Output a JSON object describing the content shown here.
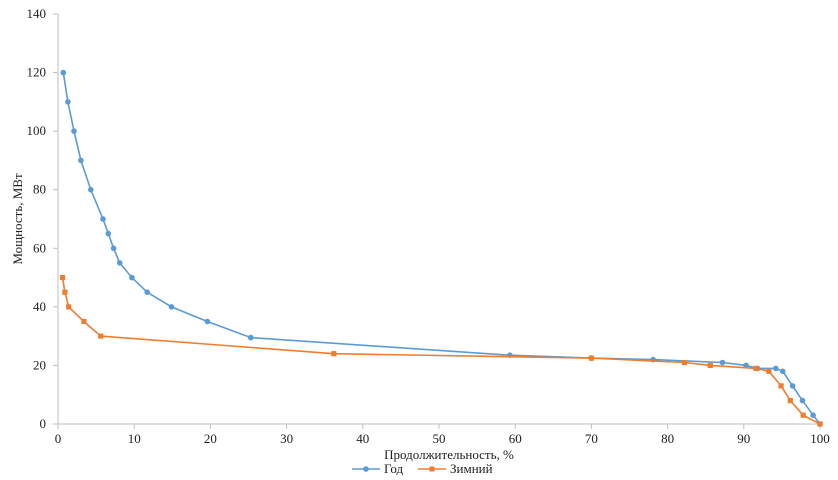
{
  "chart_data": {
    "type": "line",
    "xlabel": "Продолжительность, %",
    "ylabel": "Мощность, МВт",
    "xlim": [
      0,
      100
    ],
    "ylim": [
      0,
      140
    ],
    "xticks": [
      0,
      10,
      20,
      30,
      40,
      50,
      60,
      70,
      80,
      90,
      100
    ],
    "yticks": [
      0,
      20,
      40,
      60,
      80,
      100,
      120,
      140
    ],
    "grid": false,
    "legend_position": "bottom",
    "series": [
      {
        "name": "Год",
        "color": "#5b9bd5",
        "marker": "circle",
        "points": [
          [
            0.7,
            120
          ],
          [
            1.3,
            110
          ],
          [
            2.1,
            100
          ],
          [
            3.0,
            90
          ],
          [
            4.3,
            80
          ],
          [
            5.9,
            70
          ],
          [
            6.6,
            65
          ],
          [
            7.3,
            60
          ],
          [
            8.1,
            55
          ],
          [
            9.7,
            50
          ],
          [
            11.7,
            45
          ],
          [
            14.9,
            40
          ],
          [
            19.6,
            35
          ],
          [
            25.3,
            29.5
          ],
          [
            59.3,
            23.5
          ],
          [
            70.0,
            22.5
          ],
          [
            78.1,
            22
          ],
          [
            87.2,
            21
          ],
          [
            90.3,
            20
          ],
          [
            91.8,
            19
          ],
          [
            94.2,
            19
          ],
          [
            95.1,
            18
          ],
          [
            96.4,
            13
          ],
          [
            97.7,
            8
          ],
          [
            99.1,
            3
          ],
          [
            100,
            0
          ]
        ]
      },
      {
        "name": "Зимний",
        "color": "#ed7d31",
        "marker": "square",
        "points": [
          [
            0.6,
            50
          ],
          [
            0.9,
            45
          ],
          [
            1.4,
            40
          ],
          [
            3.4,
            35
          ],
          [
            5.6,
            30
          ],
          [
            36.2,
            24
          ],
          [
            70.0,
            22.5
          ],
          [
            82.2,
            21
          ],
          [
            85.6,
            20
          ],
          [
            91.6,
            19
          ],
          [
            93.3,
            18
          ],
          [
            94.9,
            13
          ],
          [
            96.1,
            8
          ],
          [
            97.8,
            3
          ],
          [
            100,
            0
          ]
        ]
      }
    ]
  }
}
